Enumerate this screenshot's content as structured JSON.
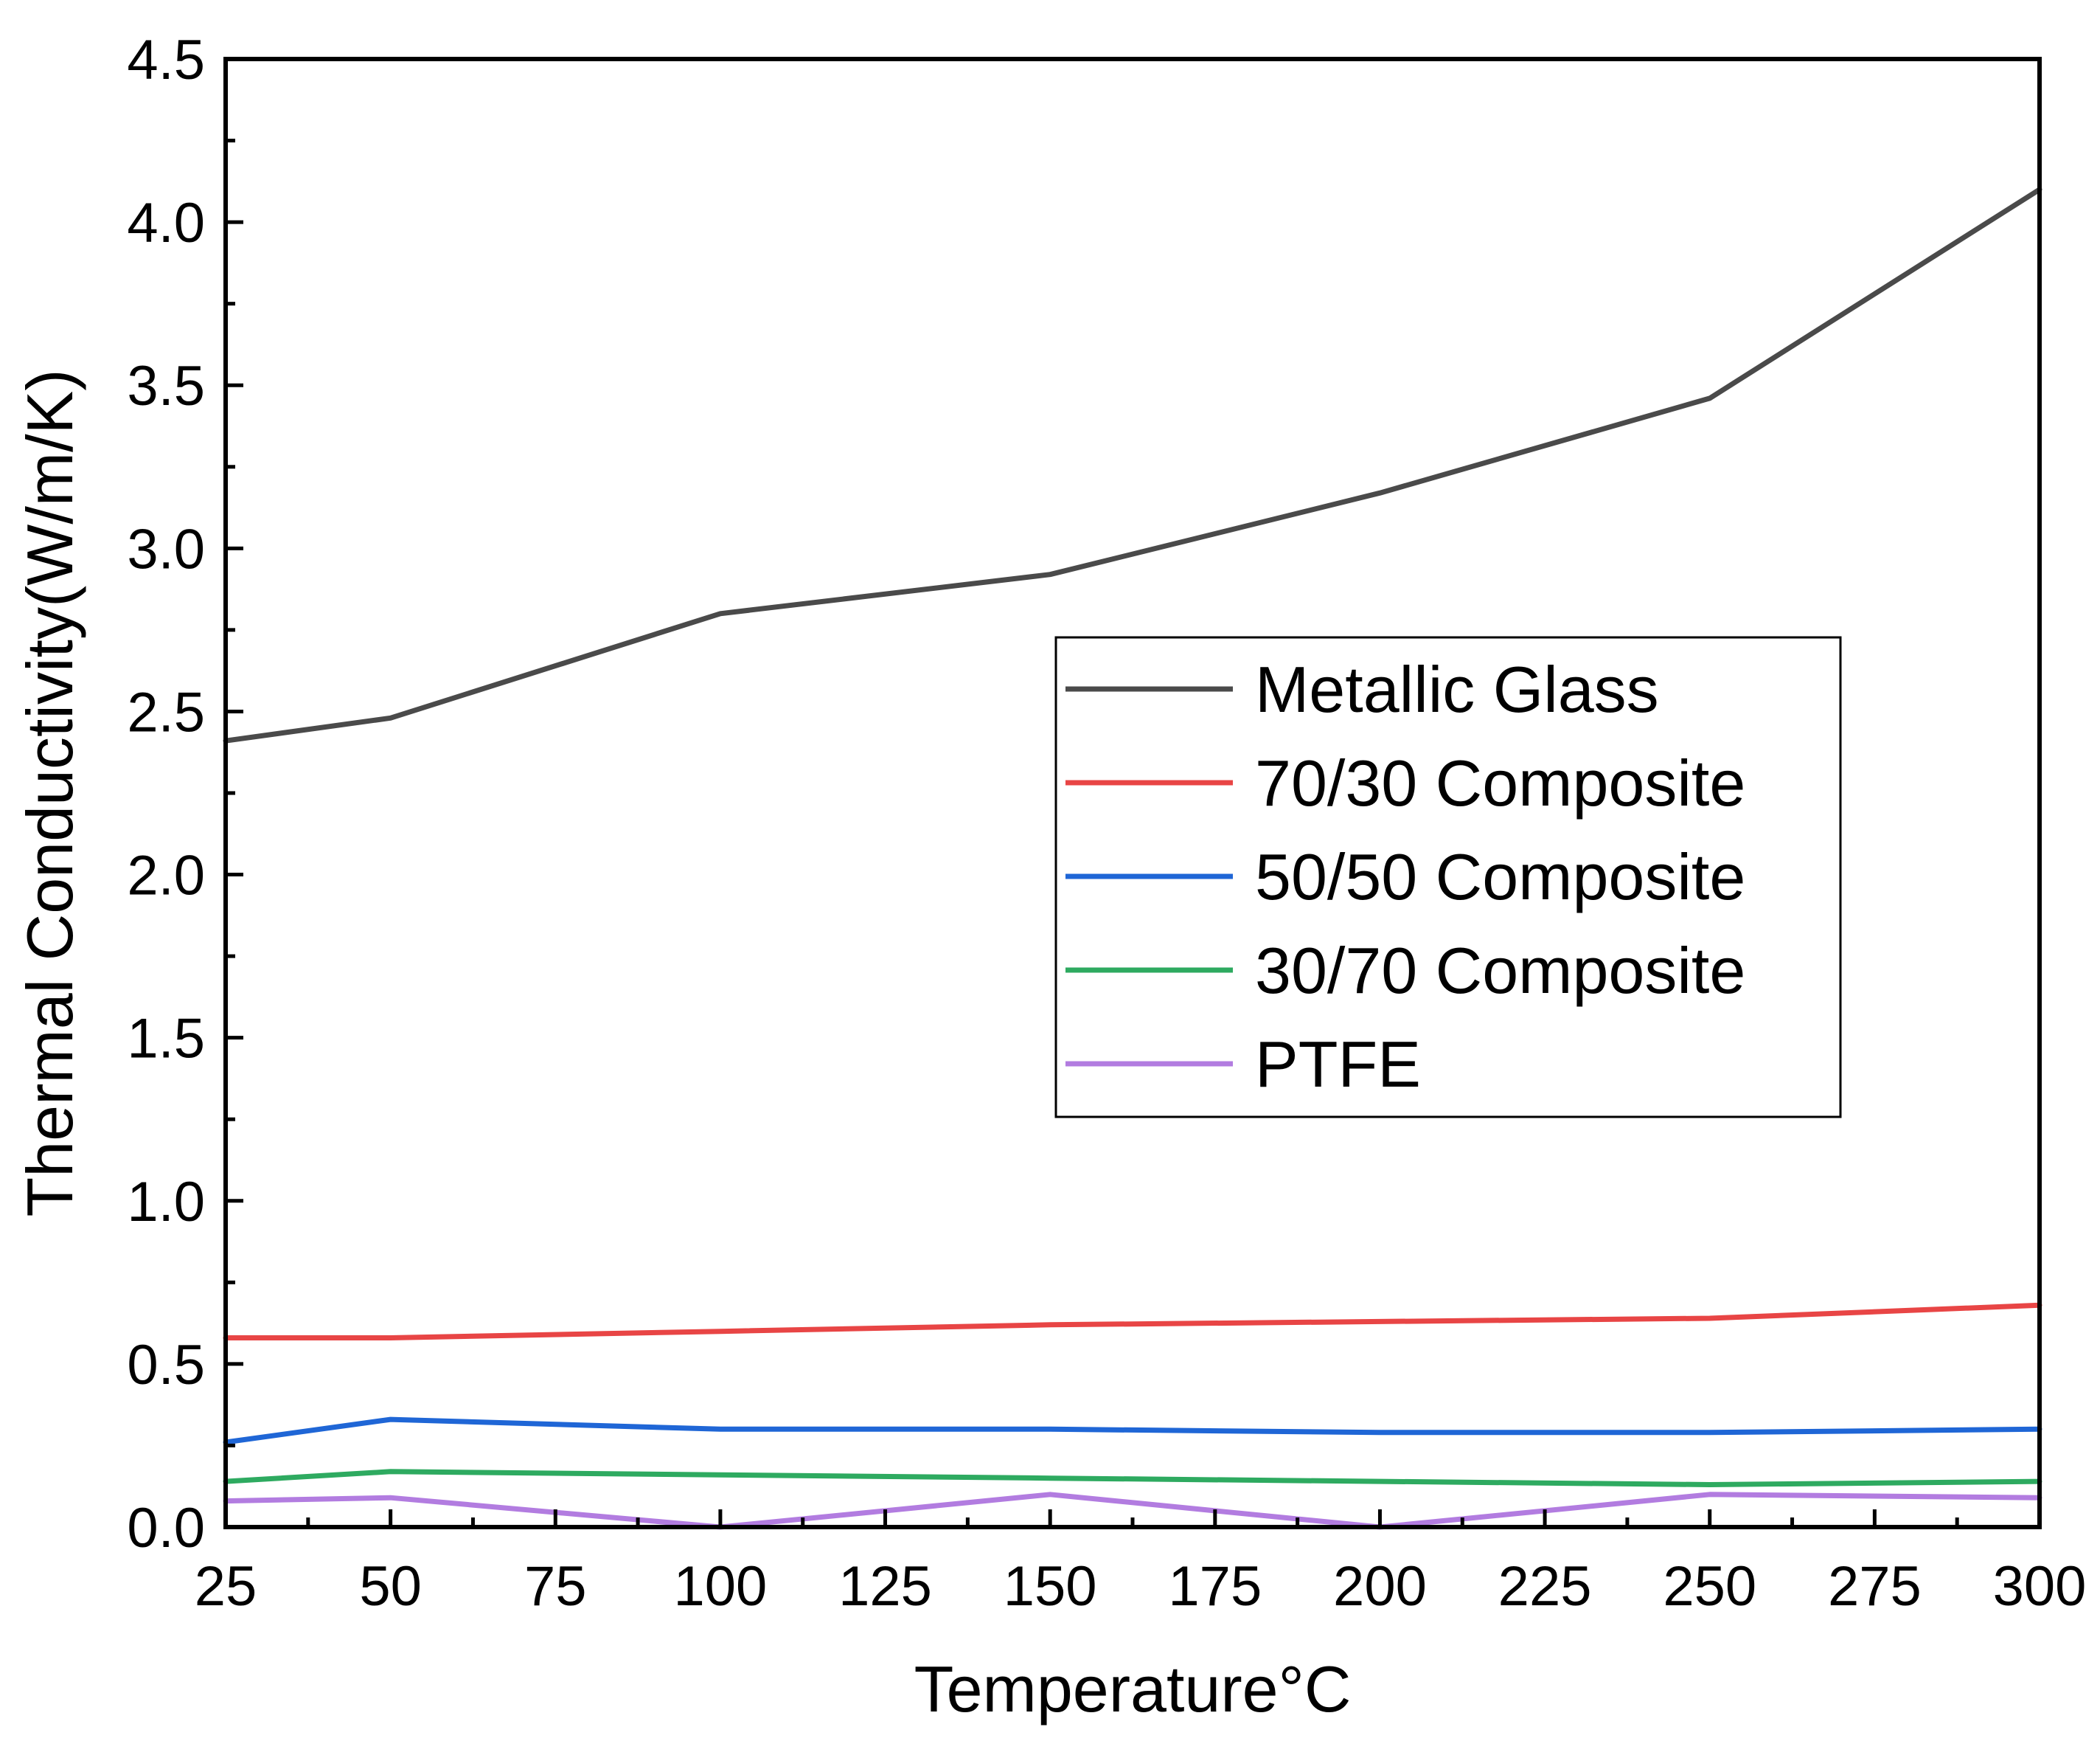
{
  "chart_data": {
    "type": "line",
    "title": "",
    "xlabel": "Temperature°C",
    "ylabel": "Thermal Conductivity(W/m/K)",
    "xlim": [
      25,
      300
    ],
    "ylim": [
      0.0,
      4.5
    ],
    "x_ticks": [
      "25",
      "50",
      "75",
      "100",
      "125",
      "150",
      "175",
      "200",
      "225",
      "250",
      "275",
      "300"
    ],
    "y_ticks": [
      "0.0",
      "0.5",
      "1.0",
      "1.5",
      "2.0",
      "2.5",
      "3.0",
      "3.5",
      "4.0",
      "4.5"
    ],
    "grid": false,
    "legend_position": "center-right",
    "x": [
      25,
      50,
      100,
      150,
      200,
      250,
      300
    ],
    "series": [
      {
        "name": "Metallic Glass",
        "color": "#4a4a4a",
        "values": [
          2.41,
          2.48,
          2.8,
          2.92,
          3.17,
          3.46,
          4.1
        ]
      },
      {
        "name": "70/30 Composite",
        "color": "#e84545",
        "values": [
          0.58,
          0.58,
          0.6,
          0.62,
          0.63,
          0.64,
          0.68
        ]
      },
      {
        "name": "50/50 Composite",
        "color": "#1f66d6",
        "values": [
          0.26,
          0.33,
          0.3,
          0.3,
          0.29,
          0.29,
          0.3
        ]
      },
      {
        "name": "30/70 Composite",
        "color": "#2eaa60",
        "values": [
          0.14,
          0.17,
          0.16,
          0.15,
          0.14,
          0.13,
          0.14
        ]
      },
      {
        "name": "PTFE",
        "color": "#b27ce0",
        "values": [
          0.08,
          0.09,
          0.0,
          0.1,
          0.0,
          0.1,
          0.09
        ]
      }
    ]
  }
}
